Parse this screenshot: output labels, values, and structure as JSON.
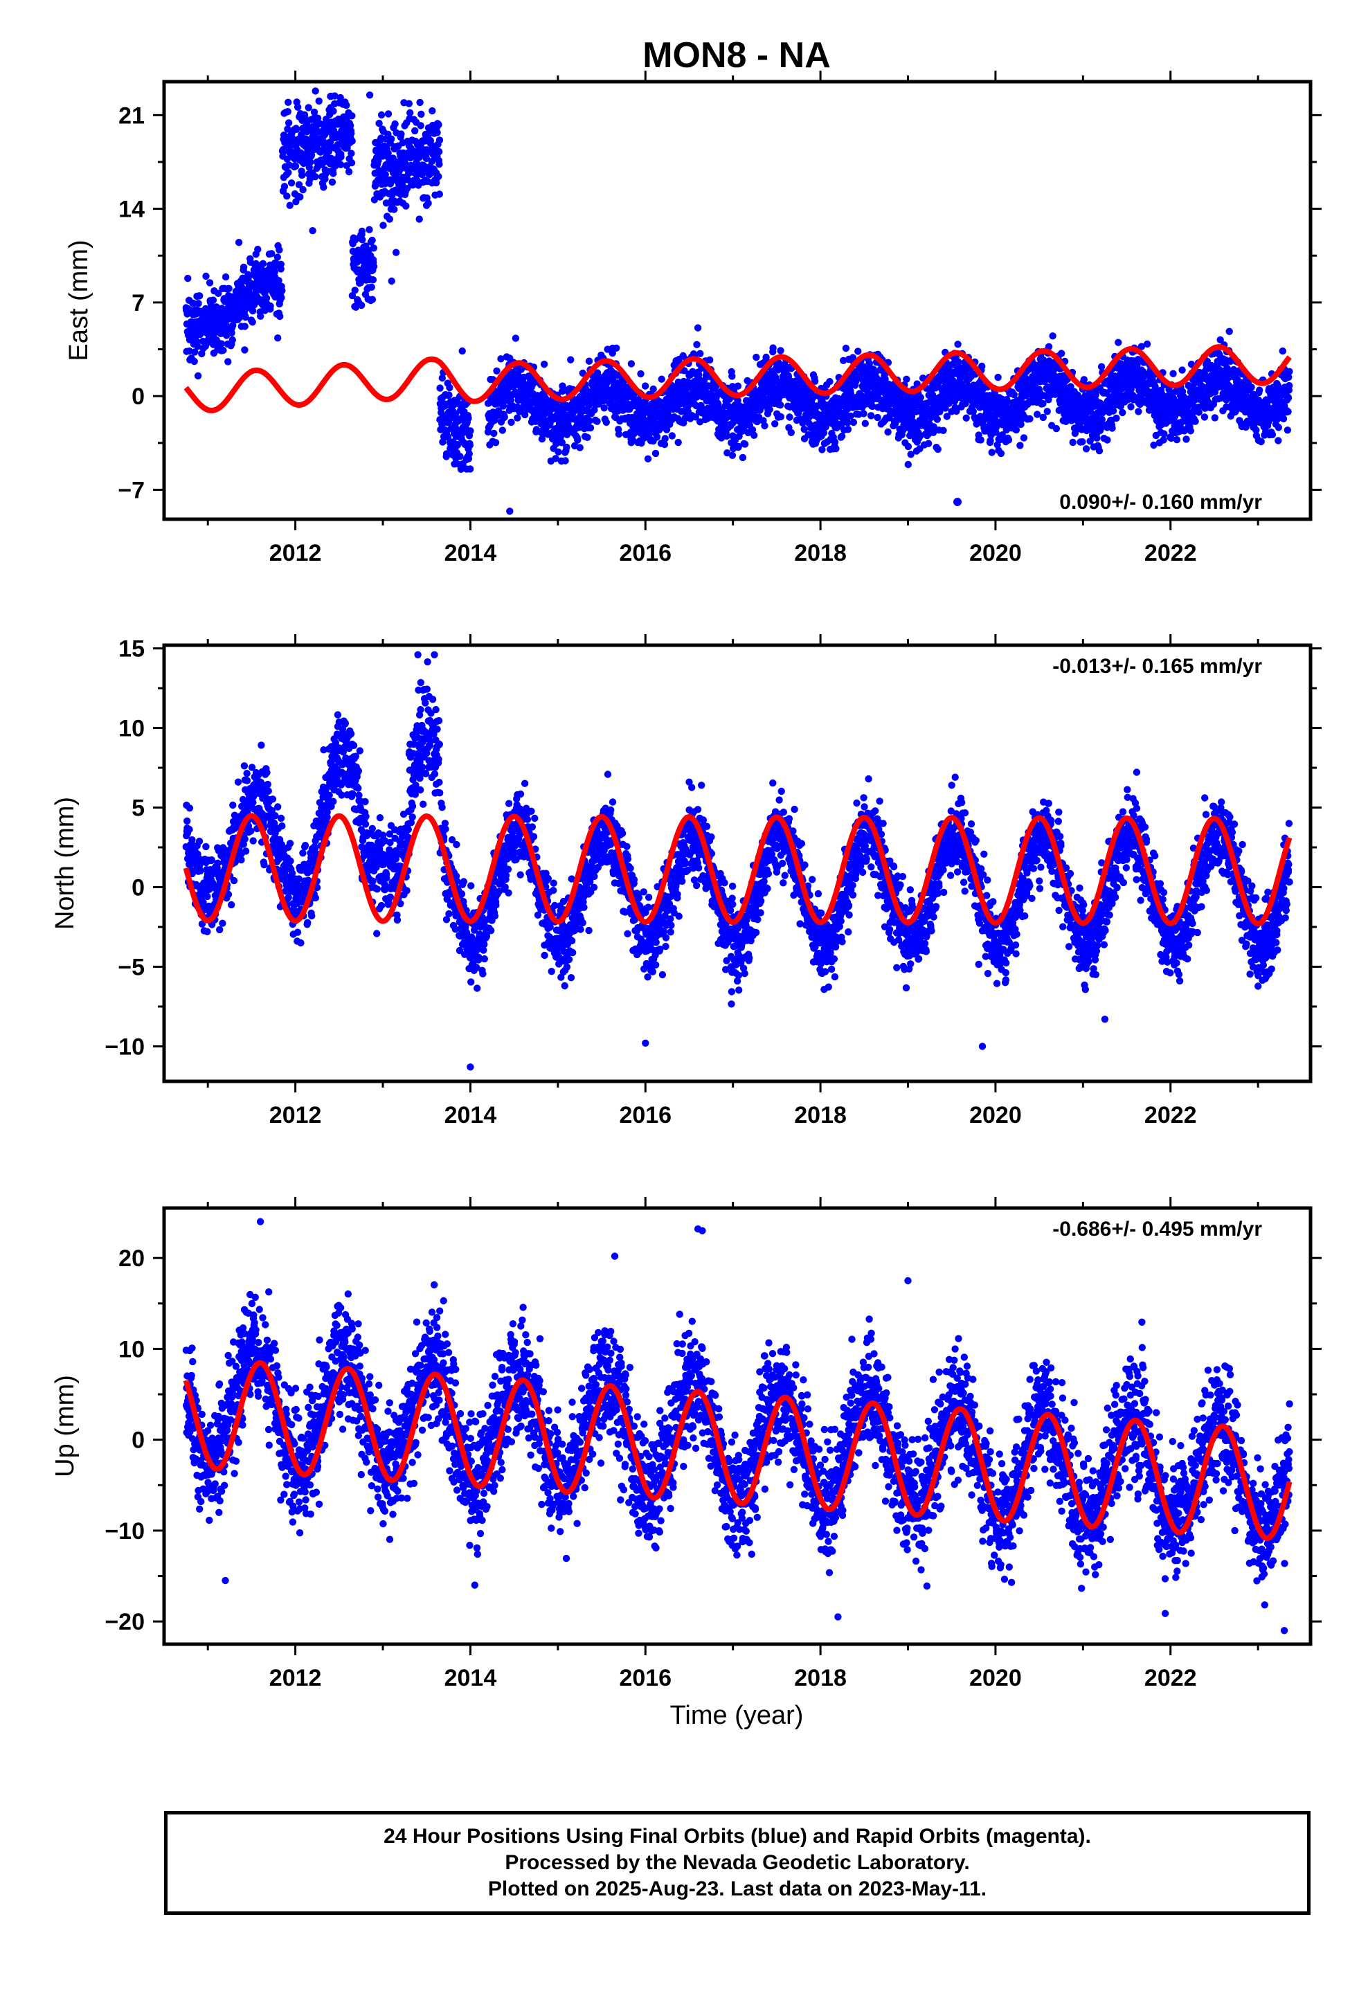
{
  "figure": {
    "title": "MON8 - NA",
    "xlabel": "Time (year)"
  },
  "footer": {
    "lines": [
      "24 Hour Positions Using Final Orbits (blue) and Rapid Orbits (magenta).",
      "Processed by the Nevada Geodetic Laboratory.",
      "Plotted on 2025-Aug-23. Last data on 2023-May-11."
    ]
  },
  "colors": {
    "points": "#0000ff",
    "model": "#ff0000",
    "axes": "#000000"
  },
  "chart_data": [
    {
      "type": "scatter",
      "name": "east",
      "ylabel": "East (mm)",
      "rate_label": "0.090+/- 0.160 mm/yr",
      "rate_placement": "bottom-right",
      "legend_marker": true,
      "xlim": [
        2010.5,
        2023.6
      ],
      "ylim": [
        -9.2,
        23.5
      ],
      "xticks": [
        2012,
        2014,
        2016,
        2018,
        2020,
        2022
      ],
      "yticks": [
        -7,
        0,
        7,
        14,
        21
      ],
      "ytick_labels": [
        "−7",
        "0",
        "7",
        "14",
        "21"
      ],
      "grid": false,
      "series": [
        {
          "name": "24 hour positions (final orbits)",
          "kind": "points",
          "segments": [
            {
              "x_start": 2010.75,
              "x_end": 2011.85,
              "mean": 5.0,
              "trend": 3.0,
              "seasonal_amp": 0.6,
              "scatter": 1.3
            },
            {
              "x_start": 2011.85,
              "x_end": 2012.65,
              "mean": 18.8,
              "trend": 0.0,
              "seasonal_amp": 0.5,
              "scatter": 1.6
            },
            {
              "x_start": 2012.65,
              "x_end": 2012.9,
              "mean": 9.5,
              "trend": 0.0,
              "seasonal_amp": 0.0,
              "scatter": 1.6
            },
            {
              "x_start": 2012.9,
              "x_end": 2013.65,
              "mean": 17.5,
              "trend": 0.0,
              "seasonal_amp": 0.5,
              "scatter": 1.8
            },
            {
              "x_start": 2013.65,
              "x_end": 2014.0,
              "mean": -1.5,
              "trend": -3.0,
              "seasonal_amp": 0.5,
              "scatter": 1.6
            },
            {
              "x_start": 2014.2,
              "x_end": 2023.36,
              "mean": -0.7,
              "trend": 0.09,
              "seasonal_amp": 1.4,
              "scatter": 1.2
            }
          ],
          "outliers": [
            {
              "x": 2014.45,
              "y": -8.6
            },
            {
              "x": 2012.85,
              "y": 22.5
            },
            {
              "x": 2013.1,
              "y": 8.6
            },
            {
              "x": 2016.6,
              "y": 5.1
            },
            {
              "x": 2011.55,
              "y": 10.6
            }
          ]
        },
        {
          "name": "model fit",
          "kind": "line",
          "x_range": [
            2010.75,
            2023.36
          ],
          "seasonal_amp": 1.4,
          "seasonal_phase_peak": 0.55,
          "baseline_points": [
            [
              2010.75,
              0.2
            ],
            [
              2013.65,
              1.4
            ],
            [
              2014.0,
              1.0
            ],
            [
              2023.36,
              2.4
            ]
          ]
        }
      ]
    },
    {
      "type": "scatter",
      "name": "north",
      "ylabel": "North (mm)",
      "rate_label": "-0.013+/- 0.165 mm/yr",
      "rate_placement": "top-right",
      "legend_marker": false,
      "xlim": [
        2010.5,
        2023.6
      ],
      "ylim": [
        -12.2,
        15.2
      ],
      "xticks": [
        2012,
        2014,
        2016,
        2018,
        2020,
        2022
      ],
      "yticks": [
        -10,
        -5,
        0,
        5,
        10,
        15
      ],
      "ytick_labels": [
        "−10",
        "−5",
        "0",
        "5",
        "10",
        "15"
      ],
      "grid": false,
      "series": [
        {
          "name": "24 hour positions (final orbits)",
          "kind": "points",
          "segments": [
            {
              "x_start": 2010.75,
              "x_end": 2012.2,
              "mean": 2.5,
              "trend": 0.0,
              "seasonal_amp": 2.8,
              "scatter": 1.3
            },
            {
              "x_start": 2012.2,
              "x_end": 2012.75,
              "mean": 4.0,
              "trend": 0.0,
              "seasonal_amp": 4.5,
              "scatter": 1.4
            },
            {
              "x_start": 2012.75,
              "x_end": 2013.3,
              "mean": 2.5,
              "trend": 0.0,
              "seasonal_amp": 1.5,
              "scatter": 1.4
            },
            {
              "x_start": 2013.3,
              "x_end": 2013.65,
              "mean": 6.5,
              "trend": 0.0,
              "seasonal_amp": 3.0,
              "scatter": 1.5
            },
            {
              "x_start": 2013.65,
              "x_end": 2023.36,
              "mean": 0.0,
              "trend": -0.013,
              "seasonal_amp": 3.4,
              "scatter": 1.2
            }
          ],
          "outliers": [
            {
              "x": 2013.4,
              "y": 14.6
            },
            {
              "x": 2014.0,
              "y": -11.3
            },
            {
              "x": 2016.0,
              "y": -9.8
            },
            {
              "x": 2019.85,
              "y": -10.0
            },
            {
              "x": 2021.25,
              "y": -8.3
            },
            {
              "x": 2016.5,
              "y": 6.6
            },
            {
              "x": 2018.55,
              "y": 6.8
            },
            {
              "x": 2019.5,
              "y": 6.4
            }
          ]
        },
        {
          "name": "model fit",
          "kind": "line",
          "x_range": [
            2010.75,
            2023.36
          ],
          "seasonal_amp": 3.3,
          "seasonal_phase_peak": 0.5,
          "baseline_points": [
            [
              2010.75,
              1.2
            ],
            [
              2023.36,
              1.0
            ]
          ]
        }
      ]
    },
    {
      "type": "scatter",
      "name": "up",
      "ylabel": "Up (mm)",
      "rate_label": "-0.686+/- 0.495 mm/yr",
      "rate_placement": "top-right",
      "legend_marker": false,
      "xlim": [
        2010.5,
        2023.6
      ],
      "ylim": [
        -22.5,
        25.5
      ],
      "xticks": [
        2012,
        2014,
        2016,
        2018,
        2020,
        2022
      ],
      "yticks": [
        -20,
        -10,
        0,
        10,
        20
      ],
      "ytick_labels": [
        "−20",
        "−10",
        "0",
        "10",
        "20"
      ],
      "grid": false,
      "series": [
        {
          "name": "24 hour positions (final orbits)",
          "kind": "points",
          "segments": [
            {
              "x_start": 2010.75,
              "x_end": 2023.36,
              "mean": 4.0,
              "trend": -0.686,
              "seasonal_amp": 6.0,
              "scatter": 3.2
            }
          ],
          "outliers": [
            {
              "x": 2011.6,
              "y": 24.0
            },
            {
              "x": 2016.6,
              "y": 23.2
            },
            {
              "x": 2016.65,
              "y": 23.0
            },
            {
              "x": 2018.2,
              "y": -19.5
            },
            {
              "x": 2023.3,
              "y": -21.0
            },
            {
              "x": 2011.2,
              "y": -15.5
            },
            {
              "x": 2014.05,
              "y": -16.0
            },
            {
              "x": 2019.0,
              "y": 17.5
            },
            {
              "x": 2015.65,
              "y": 20.2
            }
          ]
        },
        {
          "name": "model fit",
          "kind": "line",
          "x_range": [
            2010.75,
            2023.36
          ],
          "seasonal_amp": 6.0,
          "seasonal_phase_peak": 0.6,
          "baseline_points": [
            [
              2010.75,
              3.0
            ],
            [
              2023.36,
              -5.0
            ]
          ]
        }
      ]
    }
  ]
}
